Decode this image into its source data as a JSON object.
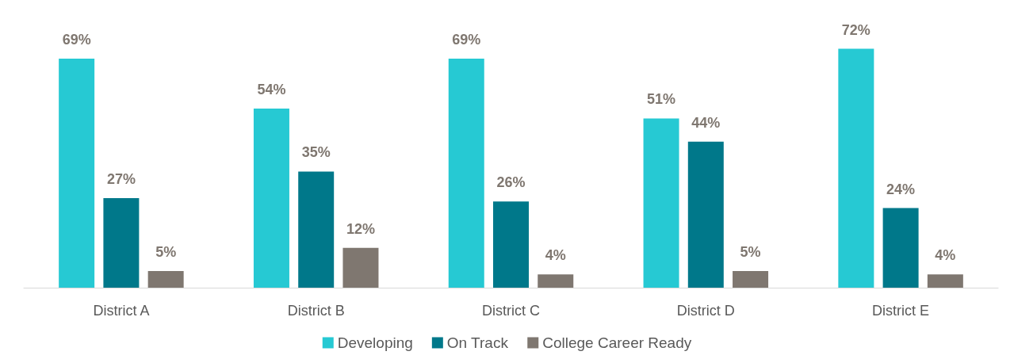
{
  "chart_data": {
    "type": "bar",
    "categories": [
      "District A",
      "District B",
      "District C",
      "District D",
      "District E"
    ],
    "series": [
      {
        "name": "Developing",
        "color": "#26c9d3",
        "values": [
          69,
          54,
          69,
          51,
          72
        ],
        "value_labels": [
          "69%",
          "54%",
          "69%",
          "51%",
          "72%"
        ]
      },
      {
        "name": "On Track",
        "color": "#00788a",
        "values": [
          27,
          35,
          26,
          44,
          24
        ],
        "value_labels": [
          "27%",
          "35%",
          "26%",
          "44%",
          "24%"
        ]
      },
      {
        "name": "College Career Ready",
        "color": "#7f7770",
        "values": [
          5,
          12,
          4,
          5,
          4
        ],
        "value_labels": [
          "5%",
          "12%",
          "4%",
          "5%",
          "4%"
        ]
      }
    ],
    "legend": "bottom",
    "grid": false
  }
}
